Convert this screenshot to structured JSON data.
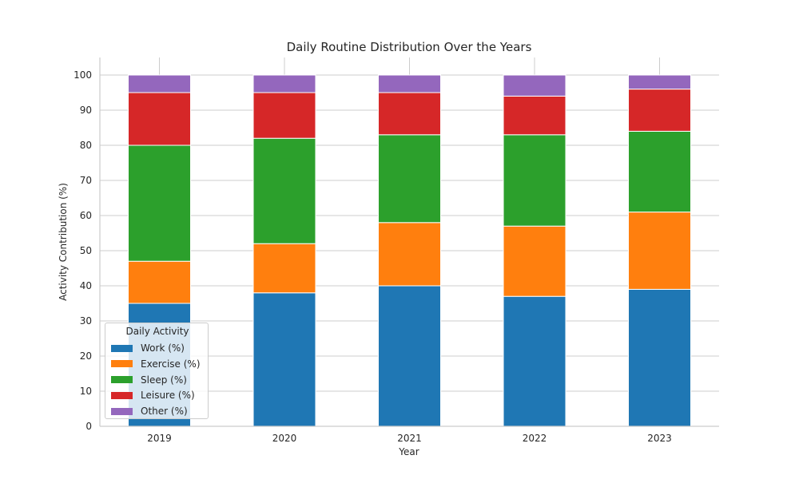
{
  "chart_data": {
    "type": "bar",
    "stacked": true,
    "title": "Daily Routine Distribution Over the Years",
    "xlabel": "Year",
    "ylabel": "Activity Contribution (%)",
    "categories": [
      "2019",
      "2020",
      "2021",
      "2022",
      "2023"
    ],
    "ylim": [
      0,
      105
    ],
    "yticks": [
      0,
      10,
      20,
      30,
      40,
      50,
      60,
      70,
      80,
      90,
      100
    ],
    "grid": true,
    "legend": {
      "title": "Daily Activity",
      "placement": "lower-left"
    },
    "series": [
      {
        "name": "Work (%)",
        "color": "#1f77b4",
        "values": [
          35,
          38,
          40,
          37,
          39
        ]
      },
      {
        "name": "Exercise (%)",
        "color": "#ff7f0e",
        "values": [
          12,
          14,
          18,
          20,
          22
        ]
      },
      {
        "name": "Sleep (%)",
        "color": "#2ca02c",
        "values": [
          33,
          30,
          25,
          26,
          23
        ]
      },
      {
        "name": "Leisure (%)",
        "color": "#d62728",
        "values": [
          15,
          13,
          12,
          11,
          12
        ]
      },
      {
        "name": "Other (%)",
        "color": "#9467bd",
        "values": [
          5,
          5,
          5,
          6,
          4
        ]
      }
    ]
  }
}
